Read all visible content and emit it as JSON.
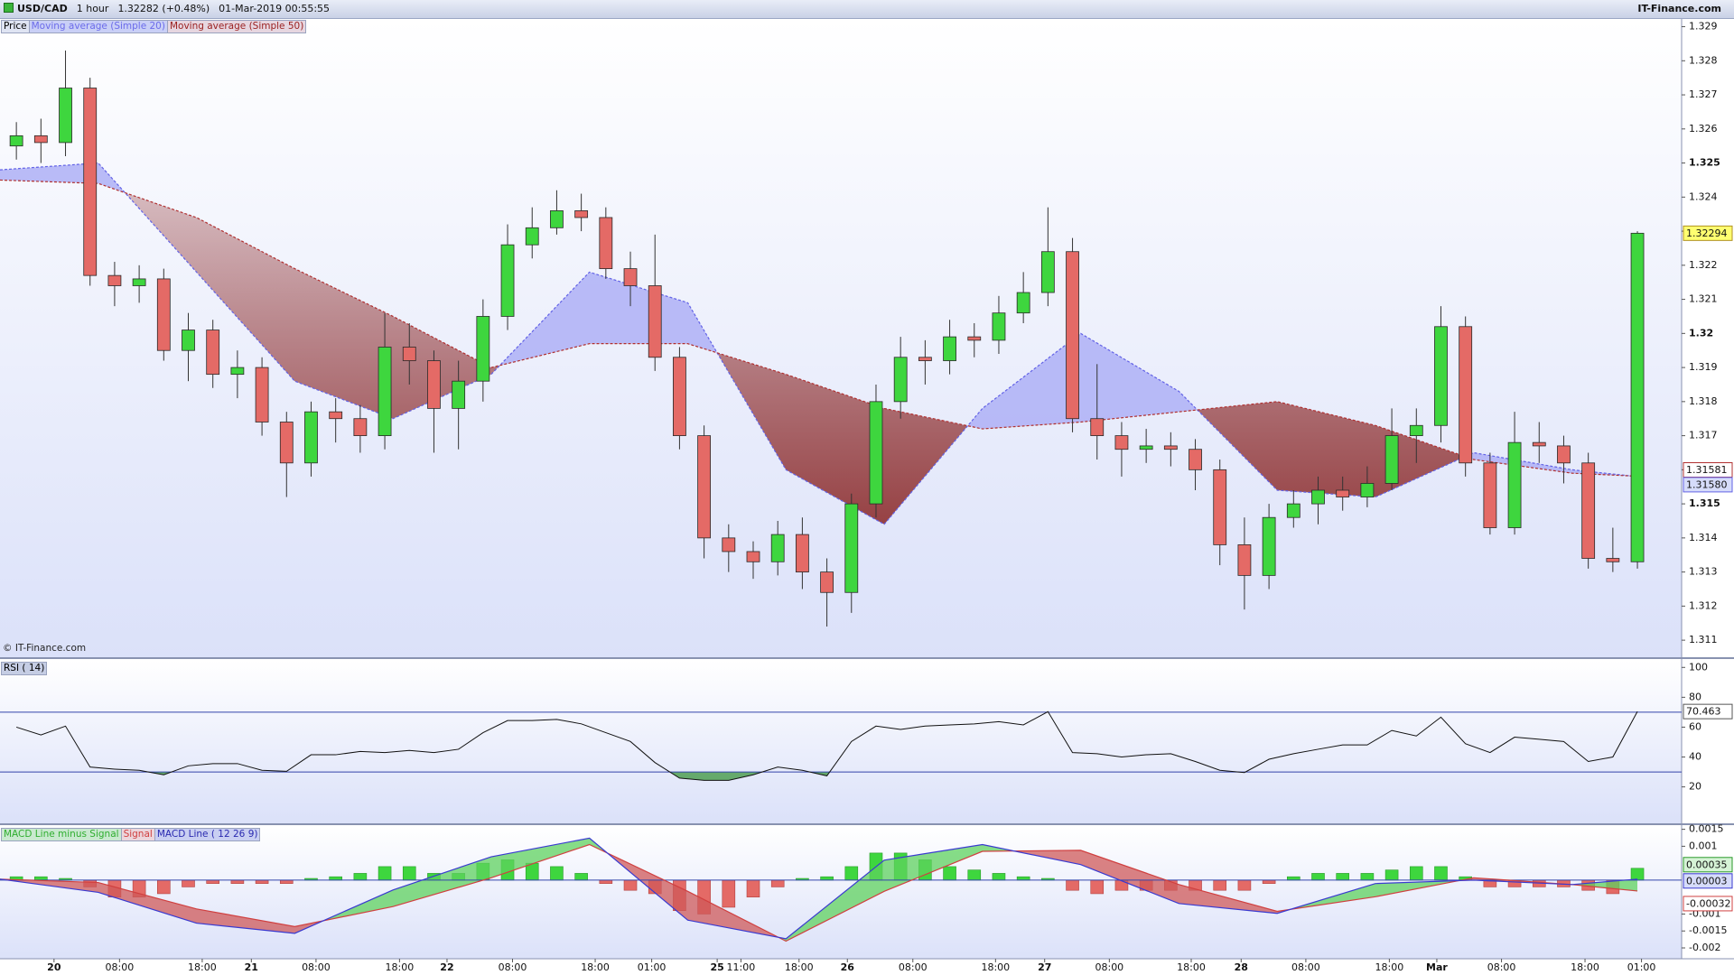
{
  "header": {
    "symbol": "USD/CAD",
    "interval": "1 hour",
    "quote": "1.32282 (+0.48%)",
    "datetime": "01-Mar-2019 00:55:55",
    "brand": "IT-Finance.com"
  },
  "watermark": "© IT-Finance.com",
  "chart_data": [
    {
      "type": "candlestick",
      "legend_title": "Price",
      "x": [
        2,
        5,
        8,
        11,
        14,
        17,
        20,
        23,
        26,
        29,
        32,
        35,
        38,
        41,
        44,
        47,
        50,
        53,
        56,
        59,
        62,
        65,
        68,
        71,
        74,
        77,
        80,
        83,
        86,
        89,
        92,
        95,
        98,
        101,
        104,
        107,
        110,
        113,
        116,
        119,
        122,
        125,
        128,
        131,
        134,
        137,
        140,
        143,
        146,
        149,
        152,
        155,
        158,
        161,
        164,
        167,
        170,
        173,
        176,
        179,
        182,
        185,
        188,
        191,
        194,
        197,
        200
      ],
      "open": [
        1.3255,
        1.3258,
        1.3256,
        1.3272,
        1.3217,
        1.3214,
        1.3216,
        1.3195,
        1.3201,
        1.3188,
        1.319,
        1.3174,
        1.3162,
        1.3177,
        1.3175,
        1.317,
        1.3196,
        1.3192,
        1.3178,
        1.3186,
        1.3205,
        1.3226,
        1.3231,
        1.3236,
        1.3234,
        1.3219,
        1.3214,
        1.3193,
        1.317,
        1.314,
        1.3136,
        1.3133,
        1.3141,
        1.313,
        1.3124,
        1.315,
        1.318,
        1.3193,
        1.3192,
        1.3199,
        1.3198,
        1.3206,
        1.3212,
        1.3224,
        1.3175,
        1.317,
        1.3166,
        1.3167,
        1.3166,
        1.316,
        1.3138,
        1.3129,
        1.3146,
        1.315,
        1.3154,
        1.3152,
        1.3156,
        1.317,
        1.3173,
        1.3202,
        1.3162,
        1.3143,
        1.3168,
        1.3167,
        1.3162,
        1.3134,
        1.3133
      ],
      "high": [
        1.3262,
        1.3263,
        1.3283,
        1.3275,
        1.3221,
        1.322,
        1.3219,
        1.3206,
        1.3204,
        1.3195,
        1.3193,
        1.3177,
        1.318,
        1.3181,
        1.3179,
        1.3206,
        1.3203,
        1.3195,
        1.3192,
        1.321,
        1.3232,
        1.3237,
        1.3242,
        1.3241,
        1.3237,
        1.3224,
        1.3229,
        1.3196,
        1.3173,
        1.3144,
        1.3139,
        1.3145,
        1.3146,
        1.3134,
        1.3153,
        1.3185,
        1.3199,
        1.3198,
        1.3204,
        1.3203,
        1.3211,
        1.3218,
        1.3237,
        1.3228,
        1.3191,
        1.3174,
        1.3172,
        1.3171,
        1.3169,
        1.3163,
        1.3146,
        1.315,
        1.3154,
        1.3158,
        1.3158,
        1.3161,
        1.3178,
        1.3178,
        1.3208,
        1.3205,
        1.3165,
        1.3177,
        1.3174,
        1.317,
        1.3165,
        1.3143,
        1.323
      ],
      "low": [
        1.3251,
        1.325,
        1.3252,
        1.3214,
        1.3208,
        1.3209,
        1.3192,
        1.3186,
        1.3184,
        1.3181,
        1.317,
        1.3152,
        1.3158,
        1.3168,
        1.3165,
        1.3166,
        1.3185,
        1.3165,
        1.3166,
        1.318,
        1.3201,
        1.3222,
        1.3229,
        1.323,
        1.3216,
        1.3208,
        1.3189,
        1.3166,
        1.3134,
        1.313,
        1.3128,
        1.3129,
        1.3125,
        1.3114,
        1.3118,
        1.3146,
        1.3175,
        1.3185,
        1.3188,
        1.3193,
        1.3194,
        1.3203,
        1.3208,
        1.3171,
        1.3163,
        1.3158,
        1.3162,
        1.3161,
        1.3154,
        1.3132,
        1.3119,
        1.3125,
        1.3143,
        1.3144,
        1.3148,
        1.3149,
        1.3154,
        1.3162,
        1.3168,
        1.3158,
        1.3141,
        1.3141,
        1.3162,
        1.3156,
        1.3131,
        1.313,
        1.3131
      ],
      "close": [
        1.3258,
        1.3256,
        1.3272,
        1.3217,
        1.3214,
        1.3216,
        1.3195,
        1.3201,
        1.3188,
        1.319,
        1.3174,
        1.3162,
        1.3177,
        1.3175,
        1.317,
        1.3196,
        1.3192,
        1.3178,
        1.3186,
        1.3205,
        1.3226,
        1.3231,
        1.3236,
        1.3234,
        1.3219,
        1.3214,
        1.3193,
        1.317,
        1.314,
        1.3136,
        1.3133,
        1.3141,
        1.313,
        1.3124,
        1.315,
        1.318,
        1.3193,
        1.3192,
        1.3199,
        1.3198,
        1.3206,
        1.3212,
        1.3224,
        1.3175,
        1.317,
        1.3166,
        1.3167,
        1.3166,
        1.316,
        1.3138,
        1.3129,
        1.3146,
        1.315,
        1.3154,
        1.3152,
        1.3156,
        1.317,
        1.3173,
        1.3202,
        1.3162,
        1.3143,
        1.3168,
        1.3167,
        1.3162,
        1.3134,
        1.3133,
        1.32294
      ],
      "up_color": "#3ed63e",
      "down_color": "#e46a66",
      "last_color": "#ffff70",
      "series": [
        {
          "name": "Moving average (Simple 20)",
          "color": "#6262e6",
          "x": [
            0,
            12,
            24,
            36,
            48,
            60,
            72,
            84,
            96,
            108,
            120,
            132,
            144,
            156,
            168,
            180,
            192,
            200
          ],
          "values": [
            1.3248,
            1.325,
            1.3218,
            1.3186,
            1.3175,
            1.3188,
            1.3218,
            1.3209,
            1.316,
            1.3144,
            1.3178,
            1.32,
            1.3183,
            1.3154,
            1.3152,
            1.3165,
            1.316,
            1.3158
          ],
          "value_labels": [
            null,
            null,
            null,
            null,
            null,
            null,
            null,
            null,
            null,
            null,
            null,
            null,
            null,
            null,
            null,
            null,
            null,
            "1.31580"
          ]
        },
        {
          "name": "Moving average (Simple 50)",
          "color": "#b03030",
          "x": [
            0,
            12,
            24,
            36,
            48,
            60,
            72,
            84,
            96,
            108,
            120,
            132,
            144,
            156,
            168,
            180,
            192,
            200
          ],
          "values": [
            1.3245,
            1.3244,
            1.3234,
            1.3219,
            1.3205,
            1.319,
            1.3197,
            1.3197,
            1.3188,
            1.3178,
            1.3172,
            1.3174,
            1.3177,
            1.318,
            1.3173,
            1.3163,
            1.3159,
            1.31581
          ]
        }
      ],
      "fill_colors": {
        "above": "#aeb0f6",
        "below": "#8e2f2f"
      },
      "xlim": [
        0,
        205.4
      ],
      "ylim": [
        1.3105,
        1.3292
      ],
      "yticks": [
        1.311,
        1.312,
        1.313,
        1.314,
        1.315,
        1.316,
        1.317,
        1.318,
        1.319,
        1.32,
        1.321,
        1.322,
        1.323,
        1.324,
        1.325,
        1.326,
        1.327,
        1.328,
        1.329
      ]
    },
    {
      "type": "line",
      "title": "RSI ( 14)",
      "color": "#111111",
      "x": [
        2,
        5,
        8,
        11,
        14,
        17,
        20,
        23,
        26,
        29,
        32,
        35,
        38,
        41,
        44,
        47,
        50,
        53,
        56,
        59,
        62,
        65,
        68,
        71,
        74,
        77,
        80,
        83,
        86,
        89,
        92,
        95,
        98,
        101,
        104,
        107,
        110,
        113,
        116,
        119,
        122,
        125,
        128,
        131,
        134,
        137,
        140,
        143,
        146,
        149,
        152,
        155,
        158,
        161,
        164,
        167,
        170,
        173,
        176,
        179,
        182,
        185,
        188,
        191,
        194,
        197,
        200
      ],
      "values": [
        60.0,
        54.8,
        60.7,
        33.3,
        31.9,
        31.1,
        28.1,
        34.1,
        35.6,
        35.6,
        31.1,
        30.4,
        41.5,
        41.5,
        43.7,
        43.0,
        44.4,
        43.0,
        45.2,
        56.3,
        64.4,
        64.4,
        65.2,
        62.2,
        56.3,
        50.4,
        36.3,
        25.9,
        24.4,
        24.4,
        28.1,
        33.3,
        31.1,
        27.4,
        50.4,
        60.7,
        58.5,
        60.7,
        61.5,
        62.2,
        63.7,
        61.5,
        70.4,
        43.0,
        42.2,
        40.0,
        41.5,
        42.2,
        37.0,
        31.1,
        29.6,
        38.5,
        42.2,
        45.2,
        48.1,
        48.1,
        57.8,
        54.1,
        66.7,
        48.9,
        43.0,
        53.3,
        51.9,
        50.4,
        37.0,
        40.0,
        70.463
      ],
      "levels": [
        70,
        30
      ],
      "level_color": "#3344aa",
      "fill_colors": {
        "above": "#d06060",
        "below": "#2f8f2f"
      },
      "xlim": [
        0,
        205.4
      ],
      "ylim": [
        -4.4,
        104.4
      ],
      "yticks": [
        20,
        40,
        60,
        80,
        100
      ]
    },
    {
      "type": "macd",
      "series": [
        {
          "name": "MACD Line minus Signal",
          "kind": "histogram",
          "color": "#3ed63e",
          "negative_color": "#e46a66",
          "x": [
            2,
            5,
            8,
            11,
            14,
            17,
            20,
            23,
            26,
            29,
            32,
            35,
            38,
            41,
            44,
            47,
            50,
            53,
            56,
            59,
            62,
            65,
            68,
            71,
            74,
            77,
            80,
            83,
            86,
            89,
            92,
            95,
            98,
            101,
            104,
            107,
            110,
            113,
            116,
            119,
            122,
            125,
            128,
            131,
            134,
            137,
            140,
            143,
            146,
            149,
            152,
            155,
            158,
            161,
            164,
            167,
            170,
            173,
            176,
            179,
            182,
            185,
            188,
            191,
            194,
            197,
            200
          ],
          "values": [
            0.0001,
            0.0001,
            5e-05,
            -0.0002,
            -0.0005,
            -0.0005,
            -0.0004,
            -0.0002,
            -0.0001,
            -0.0001,
            -0.0001,
            -0.0001,
            5e-05,
            0.0001,
            0.0002,
            0.0004,
            0.0004,
            0.0002,
            0.0002,
            0.0005,
            0.0006,
            0.0005,
            0.0004,
            0.0002,
            -0.0001,
            -0.0003,
            -0.0004,
            -0.0009,
            -0.001,
            -0.0008,
            -0.0005,
            -0.0002,
            5e-05,
            0.0001,
            0.0004,
            0.0008,
            0.0008,
            0.0006,
            0.0004,
            0.0003,
            0.0002,
            0.0001,
            5e-05,
            -0.0003,
            -0.0004,
            -0.0003,
            -0.0003,
            -0.0003,
            -0.0003,
            -0.0003,
            -0.0003,
            -0.0001,
            0.0001,
            0.0002,
            0.0002,
            0.0002,
            0.0003,
            0.0004,
            0.0004,
            0.0001,
            -0.0002,
            -0.0002,
            -0.0002,
            -0.0002,
            -0.0003,
            -0.0004,
            0.00035
          ]
        },
        {
          "name": "Signal",
          "kind": "line",
          "color": "#d04040",
          "x": [
            0,
            12,
            24,
            36,
            48,
            60,
            72,
            84,
            96,
            108,
            120,
            132,
            144,
            156,
            168,
            180,
            192,
            200
          ],
          "values": [
            3e-05,
            -7e-05,
            -0.00085,
            -0.00137,
            -0.00078,
            7e-05,
            0.00105,
            -0.00033,
            -0.0018,
            -0.00033,
            0.00085,
            0.00088,
            -0.00013,
            -0.00092,
            -0.00049,
            7e-05,
            -0.00013,
            -0.00032
          ]
        },
        {
          "name": "MACD Line ( 12 26 9)",
          "kind": "line",
          "color": "#3a3ad0",
          "x": [
            0,
            12,
            24,
            36,
            48,
            60,
            72,
            84,
            96,
            108,
            120,
            132,
            144,
            156,
            168,
            180,
            192,
            200
          ],
          "values": [
            3e-05,
            -0.00036,
            -0.00127,
            -0.00157,
            -0.00029,
            0.00069,
            0.00124,
            -0.00118,
            -0.00173,
            0.00059,
            0.00105,
            0.00046,
            -0.00069,
            -0.00098,
            -0.0001,
            0,
            -0.00013,
            3e-05
          ]
        }
      ],
      "fill_colors": {
        "above": "#5fd25f",
        "below": "#cf5a5a"
      },
      "levels": [
        0
      ],
      "level_color": "#3344aa",
      "xlim": [
        0,
        205.4
      ],
      "ylim": [
        -0.00232,
        0.00157
      ],
      "yticks": [
        -0.002,
        -0.0015,
        -0.001,
        0.001,
        0.0015
      ],
      "xticks": [
        {
          "value": 6.6,
          "label": "20"
        },
        {
          "value": 14.6,
          "label": "08:00"
        },
        {
          "value": 24.7,
          "label": "18:00"
        },
        {
          "value": 30.7,
          "label": "21"
        },
        {
          "value": 38.6,
          "label": "08:00"
        },
        {
          "value": 48.8,
          "label": "18:00"
        },
        {
          "value": 54.6,
          "label": "22"
        },
        {
          "value": 62.6,
          "label": "08:00"
        },
        {
          "value": 72.7,
          "label": "18:00"
        },
        {
          "value": 79.6,
          "label": "01:00"
        },
        {
          "value": 87.6,
          "label": "25"
        },
        {
          "value": 90.5,
          "label": "11:00"
        },
        {
          "value": 97.6,
          "label": "18:00"
        },
        {
          "value": 103.5,
          "label": "26"
        },
        {
          "value": 111.5,
          "label": "08:00"
        },
        {
          "value": 121.6,
          "label": "18:00"
        },
        {
          "value": 127.6,
          "label": "27"
        },
        {
          "value": 135.5,
          "label": "08:00"
        },
        {
          "value": 145.5,
          "label": "18:00"
        },
        {
          "value": 151.6,
          "label": "28"
        },
        {
          "value": 159.5,
          "label": "08:00"
        },
        {
          "value": 169.7,
          "label": "18:00"
        },
        {
          "value": 175.5,
          "label": "Mar"
        },
        {
          "value": 183.4,
          "label": "08:00"
        },
        {
          "value": 193.6,
          "label": "18:00"
        },
        {
          "value": 200.5,
          "label": "01:00"
        }
      ]
    }
  ]
}
